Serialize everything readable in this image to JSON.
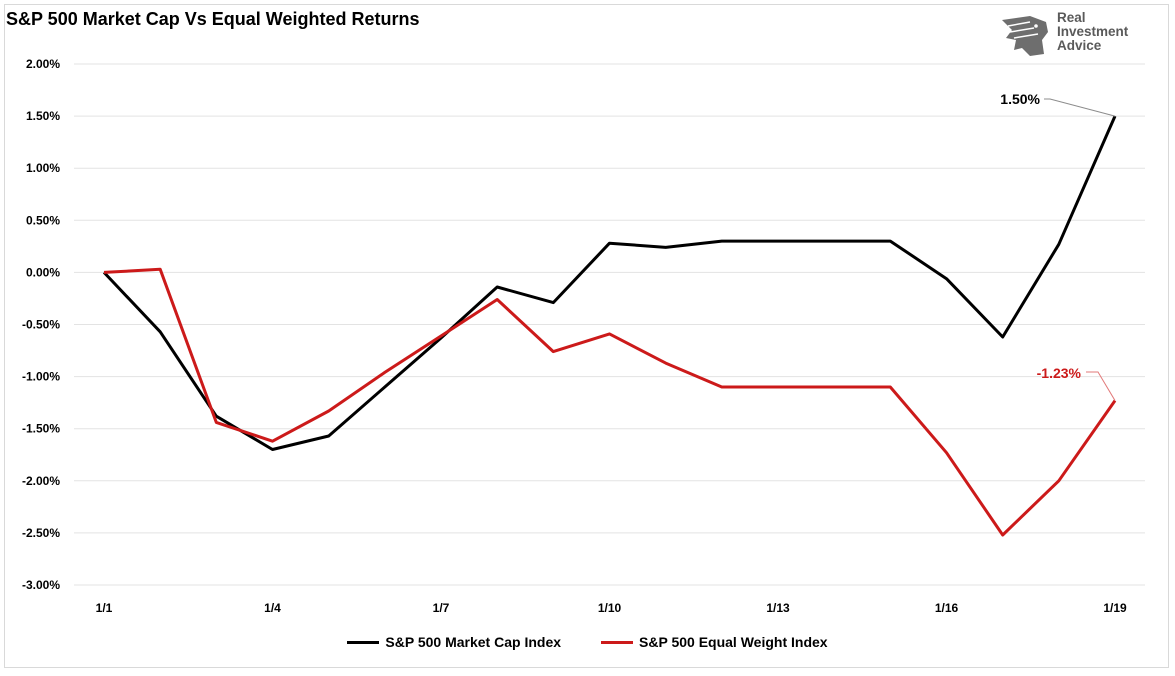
{
  "title": "S&P 500 Market Cap Vs Equal Weighted Returns",
  "logo": {
    "line1": "Real",
    "line2": "Investment",
    "line3": "Advice",
    "icon": "eagle-head-icon"
  },
  "colors": {
    "market_cap": "#000000",
    "equal_weight": "#cc1a1a",
    "grid": "#e3e3e3",
    "logo_gray": "#5a5a5a"
  },
  "chart_data": {
    "type": "line",
    "title": "S&P 500 Market Cap Vs Equal Weighted Returns",
    "x": [
      "1/1",
      "1/2",
      "1/3",
      "1/4",
      "1/5",
      "1/6",
      "1/7",
      "1/8",
      "1/9",
      "1/10",
      "1/11",
      "1/12",
      "1/13",
      "1/14",
      "1/15",
      "1/16",
      "1/17",
      "1/18",
      "1/19"
    ],
    "x_tick_labels": [
      "1/1",
      "1/4",
      "1/7",
      "1/10",
      "1/13",
      "1/16",
      "1/19"
    ],
    "ylim": [
      -3.0,
      2.0
    ],
    "y_ticks": [
      2.0,
      1.5,
      1.0,
      0.5,
      0.0,
      -0.5,
      -1.0,
      -1.5,
      -2.0,
      -2.5,
      -3.0
    ],
    "y_tick_labels": [
      "2.00%",
      "1.50%",
      "1.00%",
      "0.50%",
      "0.00%",
      "-0.50%",
      "-1.00%",
      "-1.50%",
      "-2.00%",
      "-2.50%",
      "-3.00%"
    ],
    "grid": true,
    "legend_position": "bottom",
    "series": [
      {
        "name": "S&P 500 Market Cap Index",
        "color": "#000000",
        "values": [
          0.0,
          -0.57,
          -1.38,
          -1.7,
          -1.57,
          -1.1,
          -0.63,
          -0.14,
          -0.29,
          0.28,
          0.24,
          0.3,
          0.3,
          0.3,
          0.3,
          -0.06,
          -0.62,
          0.27,
          1.5
        ],
        "end_label": "1.50%"
      },
      {
        "name": "S&P 500 Equal Weight Index",
        "color": "#cc1a1a",
        "values": [
          0.0,
          0.03,
          -1.44,
          -1.62,
          -1.33,
          -0.96,
          -0.61,
          -0.26,
          -0.76,
          -0.59,
          -0.87,
          -1.1,
          -1.1,
          -1.1,
          -1.1,
          -1.73,
          -2.52,
          -2.0,
          -1.23
        ],
        "end_label": "-1.23%"
      }
    ]
  }
}
